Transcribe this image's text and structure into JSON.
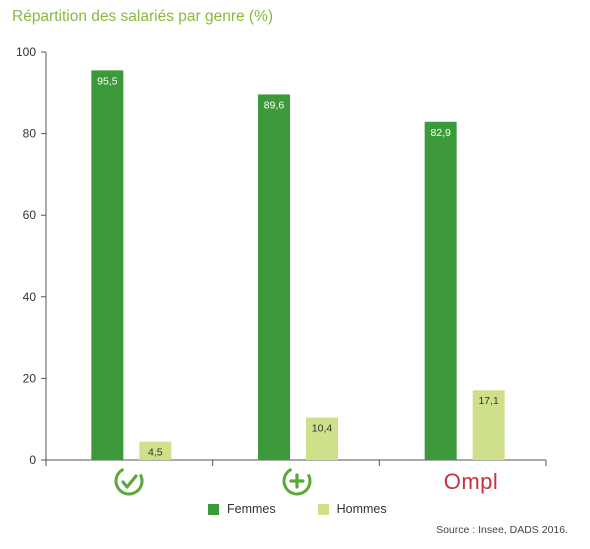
{
  "chart_data": {
    "type": "bar",
    "title": "Répartition des salariés par genre (%)",
    "xlabel": "",
    "ylabel": "",
    "ylim": [
      0,
      100
    ],
    "yticks": [
      0,
      20,
      40,
      60,
      80,
      100
    ],
    "grid": false,
    "legend_position": "bottom",
    "categories": [
      "branch-logo-1",
      "branch-logo-2",
      "Ompl"
    ],
    "series": [
      {
        "name": "Femmes",
        "color": "#3d9a3a",
        "values": [
          95.5,
          89.6,
          82.9
        ],
        "labels": [
          "95,5",
          "89,6",
          "82,9"
        ]
      },
      {
        "name": "Hommes",
        "color": "#cfe08a",
        "values": [
          4.5,
          10.4,
          17.1
        ],
        "labels": [
          "4,5",
          "10,4",
          "17,1"
        ]
      }
    ]
  },
  "logos": {
    "logo1_icon": "circle-check-icon",
    "logo2_icon": "circle-plus-icon",
    "logo3_text": "Ompl"
  },
  "colors": {
    "title": "#8bb83f",
    "axis": "#555555",
    "logo_green": "#5aa83a",
    "ompl": "#c8313e"
  },
  "source": "Source : Insee, DADS 2016."
}
